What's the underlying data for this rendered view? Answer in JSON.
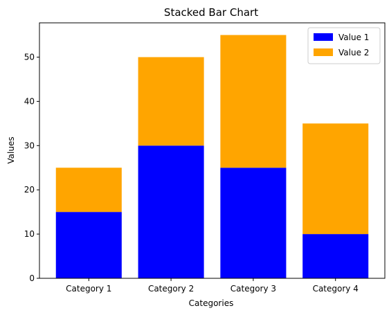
{
  "chart_data": {
    "type": "bar",
    "stacked": true,
    "title": "Stacked Bar Chart",
    "xlabel": "Categories",
    "ylabel": "Values",
    "categories": [
      "Category 1",
      "Category 2",
      "Category 3",
      "Category 4"
    ],
    "series": [
      {
        "name": "Value 1",
        "values": [
          15,
          30,
          25,
          10
        ],
        "color": "#0000ff"
      },
      {
        "name": "Value 2",
        "values": [
          10,
          20,
          30,
          25
        ],
        "color": "#ffa500"
      }
    ],
    "ylim": [
      0,
      57.75
    ],
    "yticks": [
      0,
      10,
      20,
      30,
      40,
      50
    ],
    "grid": false,
    "legend_position": "top-right"
  }
}
